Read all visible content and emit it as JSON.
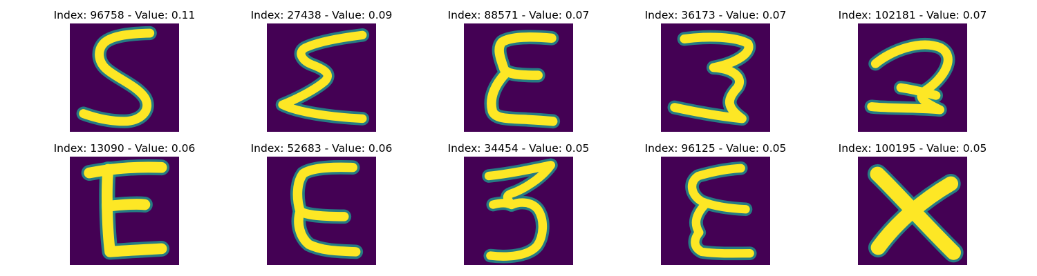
{
  "colors": {
    "background": "#440154",
    "stroke": "#fde725",
    "edge": "#21918c"
  },
  "panels": [
    {
      "title": "Index: 96758 - Value: 0.11",
      "glyph": "five"
    },
    {
      "title": "Index: 27438 - Value: 0.09",
      "glyph": "sigma"
    },
    {
      "title": "Index: 88571 - Value: 0.07",
      "glyph": "epsilon-tall"
    },
    {
      "title": "Index: 36173 - Value: 0.07",
      "glyph": "three-wide"
    },
    {
      "title": "Index: 102181 - Value: 0.07",
      "glyph": "two"
    },
    {
      "title": "Index: 13090 - Value: 0.06",
      "glyph": "e-block"
    },
    {
      "title": "Index: 52683 - Value: 0.06",
      "glyph": "e-round"
    },
    {
      "title": "Index: 34454 - Value: 0.05",
      "glyph": "three"
    },
    {
      "title": "Index: 96125 - Value: 0.05",
      "glyph": "epsilon"
    },
    {
      "title": "Index: 100195 - Value: 0.05",
      "glyph": "x"
    }
  ]
}
